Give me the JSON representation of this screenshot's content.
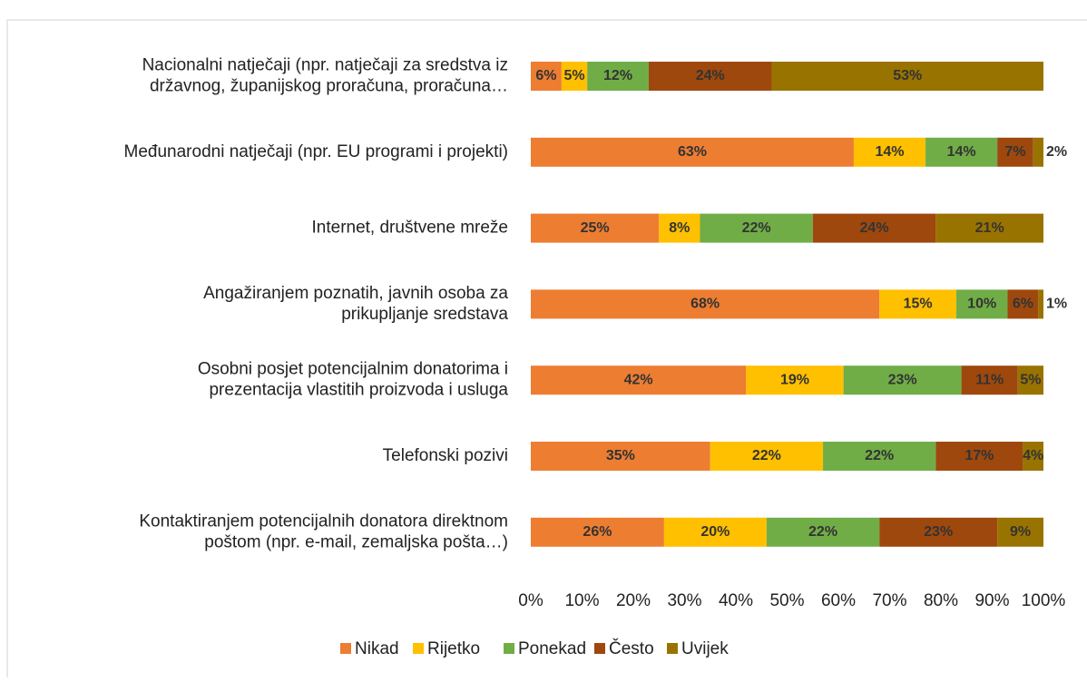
{
  "chart_data": {
    "type": "stacked-barh",
    "categories": [
      "Nacionalni natječaji (npr. natječaji za sredstva iz\ndržavnog, županijskog proračuna, proračuna…",
      "Međunarodni natječaji (npr. EU programi i projekti)",
      "Internet, društvene mreže",
      "Angažiranjem poznatih, javnih osoba za\nprikupljanje sredstava",
      "Osobni posjet potencijalnim donatorima i\nprezentacija vlastitih proizvoda i usluga",
      "Telefonski pozivi",
      "Kontaktiranjem potencijalnih donatora direktnom\npoštom (npr. e-mail, zemaljska pošta…)"
    ],
    "series": [
      {
        "name": "Nikad",
        "color": "#ED7D31",
        "values": [
          6,
          63,
          25,
          68,
          42,
          35,
          26
        ],
        "value_labels": [
          "6%",
          "63%",
          "25%",
          "68%",
          "42%",
          "35%",
          "26%"
        ]
      },
      {
        "name": "Rijetko",
        "color": "#FFC000",
        "values": [
          5,
          14,
          8,
          15,
          19,
          22,
          20
        ],
        "value_labels": [
          "5%",
          "14%",
          "8%",
          "15%",
          "19%",
          "22%",
          "20%"
        ]
      },
      {
        "name": "Ponekad",
        "color": "#70AD47",
        "values": [
          12,
          14,
          22,
          10,
          23,
          22,
          22
        ],
        "value_labels": [
          "12%",
          "14%",
          "22%",
          "10%",
          "23%",
          "22%",
          "22%"
        ]
      },
      {
        "name": "Često",
        "color": "#9E480E",
        "values": [
          24,
          7,
          24,
          6,
          11,
          17,
          23
        ],
        "value_labels": [
          "24%",
          "7%",
          "24%",
          "6%",
          "11%",
          "17%",
          "23%"
        ]
      },
      {
        "name": "Uvijek",
        "color": "#997300",
        "values": [
          53,
          2,
          21,
          1,
          5,
          4,
          9
        ],
        "value_labels": [
          "53%",
          "2%",
          "21%",
          "1%",
          "5%",
          "4%",
          "9%"
        ]
      }
    ],
    "xlim": [
      0,
      100
    ],
    "xticks": [
      {
        "value": 0,
        "label": "0%"
      },
      {
        "value": 10,
        "label": "10%"
      },
      {
        "value": 20,
        "label": "20%"
      },
      {
        "value": 30,
        "label": "30%"
      },
      {
        "value": 40,
        "label": "40%"
      },
      {
        "value": 50,
        "label": "50%"
      },
      {
        "value": 60,
        "label": "60%"
      },
      {
        "value": 70,
        "label": "70%"
      },
      {
        "value": 80,
        "label": "80%"
      },
      {
        "value": 90,
        "label": "90%"
      },
      {
        "value": 100,
        "label": "100%"
      }
    ],
    "legend": "bottom"
  }
}
